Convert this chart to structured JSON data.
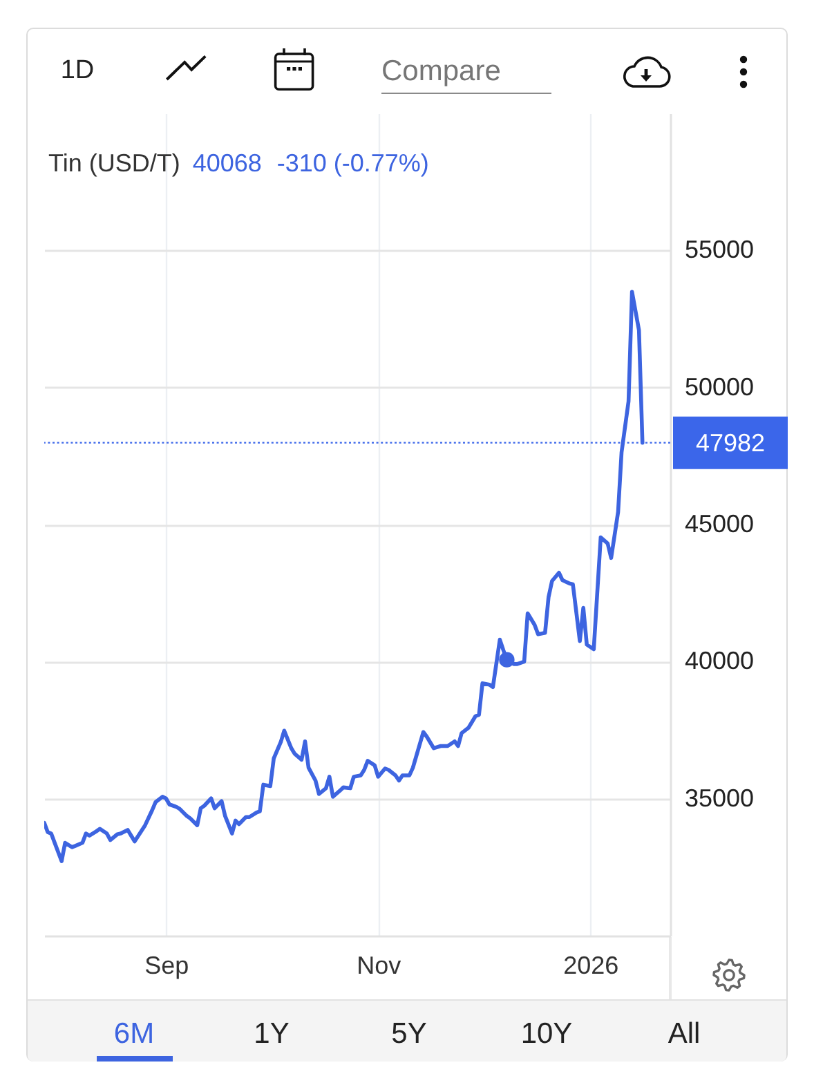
{
  "chart_data": {
    "type": "line",
    "title": "Tin (USD/T)",
    "annotations": [
      "40068",
      "-310 (-0.77%)",
      "1D",
      "Compare",
      "6M",
      "1Y",
      "5Y",
      "10Y",
      "All"
    ],
    "x": [
      "2025-07-28",
      "2025-07-29",
      "2025-07-30",
      "2025-07-31",
      "2025-08-02",
      "2025-08-03",
      "2025-08-05",
      "2025-08-06",
      "2025-08-08",
      "2025-08-09",
      "2025-08-10",
      "2025-08-12",
      "2025-08-13",
      "2025-08-15",
      "2025-08-16",
      "2025-08-18",
      "2025-08-19",
      "2025-08-21",
      "2025-08-22",
      "2025-08-23",
      "2025-08-26",
      "2025-08-28",
      "2025-08-29",
      "2025-08-31",
      "2025-09-01",
      "2025-09-02",
      "2025-09-04",
      "2025-09-05",
      "2025-09-07",
      "2025-09-08",
      "2025-09-10",
      "2025-09-11",
      "2025-09-12",
      "2025-09-14",
      "2025-09-15",
      "2025-09-17",
      "2025-09-18",
      "2025-09-20",
      "2025-09-21",
      "2025-09-22",
      "2025-09-24",
      "2025-09-25",
      "2025-09-27",
      "2025-09-28",
      "2025-09-29",
      "2025-10-01",
      "2025-10-02",
      "2025-10-04",
      "2025-10-05",
      "2025-10-07",
      "2025-10-08",
      "2025-10-10",
      "2025-10-11",
      "2025-10-12",
      "2025-10-14",
      "2025-10-15",
      "2025-10-17",
      "2025-10-18",
      "2025-10-19",
      "2025-10-21",
      "2025-10-22",
      "2025-10-24",
      "2025-10-25",
      "2025-10-27",
      "2025-10-28",
      "2025-10-29",
      "2025-10-31",
      "2025-11-01",
      "2025-11-03",
      "2025-11-04",
      "2025-11-06",
      "2025-11-07",
      "2025-11-08",
      "2025-11-10",
      "2025-11-11",
      "2025-11-14",
      "2025-11-15",
      "2025-11-17",
      "2025-11-19",
      "2025-11-21",
      "2025-11-23",
      "2025-11-24",
      "2025-11-25",
      "2025-11-27",
      "2025-11-29",
      "2025-11-30",
      "2025-12-01",
      "2025-12-03",
      "2025-12-04",
      "2025-12-06",
      "2025-12-07",
      "2025-12-08",
      "2025-12-10",
      "2025-12-11",
      "2025-12-13",
      "2025-12-14",
      "2025-12-16",
      "2025-12-17",
      "2025-12-19",
      "2025-12-20",
      "2025-12-21",
      "2025-12-23",
      "2025-12-24",
      "2025-12-26",
      "2025-12-27",
      "2025-12-29",
      "2025-12-30",
      "2025-12-31",
      "2026-01-02",
      "2026-01-04",
      "2026-01-06",
      "2026-01-07",
      "2026-01-09",
      "2026-01-10",
      "2026-01-12",
      "2026-01-13",
      "2026-01-15",
      "2026-01-16"
    ],
    "series": [
      {
        "color": "#3d64e0",
        "values": [
          34120,
          33780,
          33730,
          33390,
          32720,
          33390,
          33230,
          33280,
          33390,
          33730,
          33650,
          33810,
          33900,
          33730,
          33490,
          33700,
          33730,
          33860,
          33650,
          33440,
          34030,
          34570,
          34870,
          35070,
          35010,
          34790,
          34700,
          34620,
          34370,
          34280,
          34030,
          34650,
          34740,
          35010,
          34650,
          34910,
          34370,
          33730,
          34200,
          34070,
          34330,
          34330,
          34490,
          34540,
          35510,
          35460,
          36470,
          37060,
          37480,
          36850,
          36640,
          36420,
          37090,
          36130,
          35660,
          35170,
          35380,
          35800,
          35070,
          35290,
          35410,
          35380,
          35800,
          35850,
          36050,
          36380,
          36220,
          35800,
          36100,
          36050,
          35850,
          35660,
          35850,
          35850,
          36130,
          37430,
          37260,
          36840,
          36920,
          36920,
          37090,
          36920,
          37390,
          37590,
          38010,
          38060,
          39210,
          39160,
          39070,
          40800,
          40420,
          40068,
          39910,
          39910,
          40000,
          41760,
          41340,
          41000,
          41050,
          42350,
          42940,
          43240,
          42970,
          42850,
          42820,
          40750,
          41960,
          40620,
          40450,
          44530,
          44310,
          43780,
          45460,
          47640,
          49490,
          53490,
          52090,
          47982
        ]
      },
      {
        "type": "scatter",
        "color": "#3d64e0",
        "x": [
          "2025-12-08"
        ],
        "values": [
          40068
        ]
      }
    ],
    "xlim": [
      "2025-07-28",
      "2026-01-24"
    ],
    "xticks": [
      {
        "value": "2025-09-01",
        "label": "Sep"
      },
      {
        "value": "2025-11-01",
        "label": "Nov"
      },
      {
        "value": "2026-01-01",
        "label": "2026"
      }
    ],
    "ylim": [
      30000,
      60000
    ],
    "yticks": [
      35000,
      40000,
      45000,
      50000,
      55000
    ],
    "grid": true,
    "ref_lines": [
      {
        "axis": "y",
        "value": 47982,
        "label": "47982",
        "color": "#3b66ea",
        "line_style": "dotted"
      }
    ]
  }
}
